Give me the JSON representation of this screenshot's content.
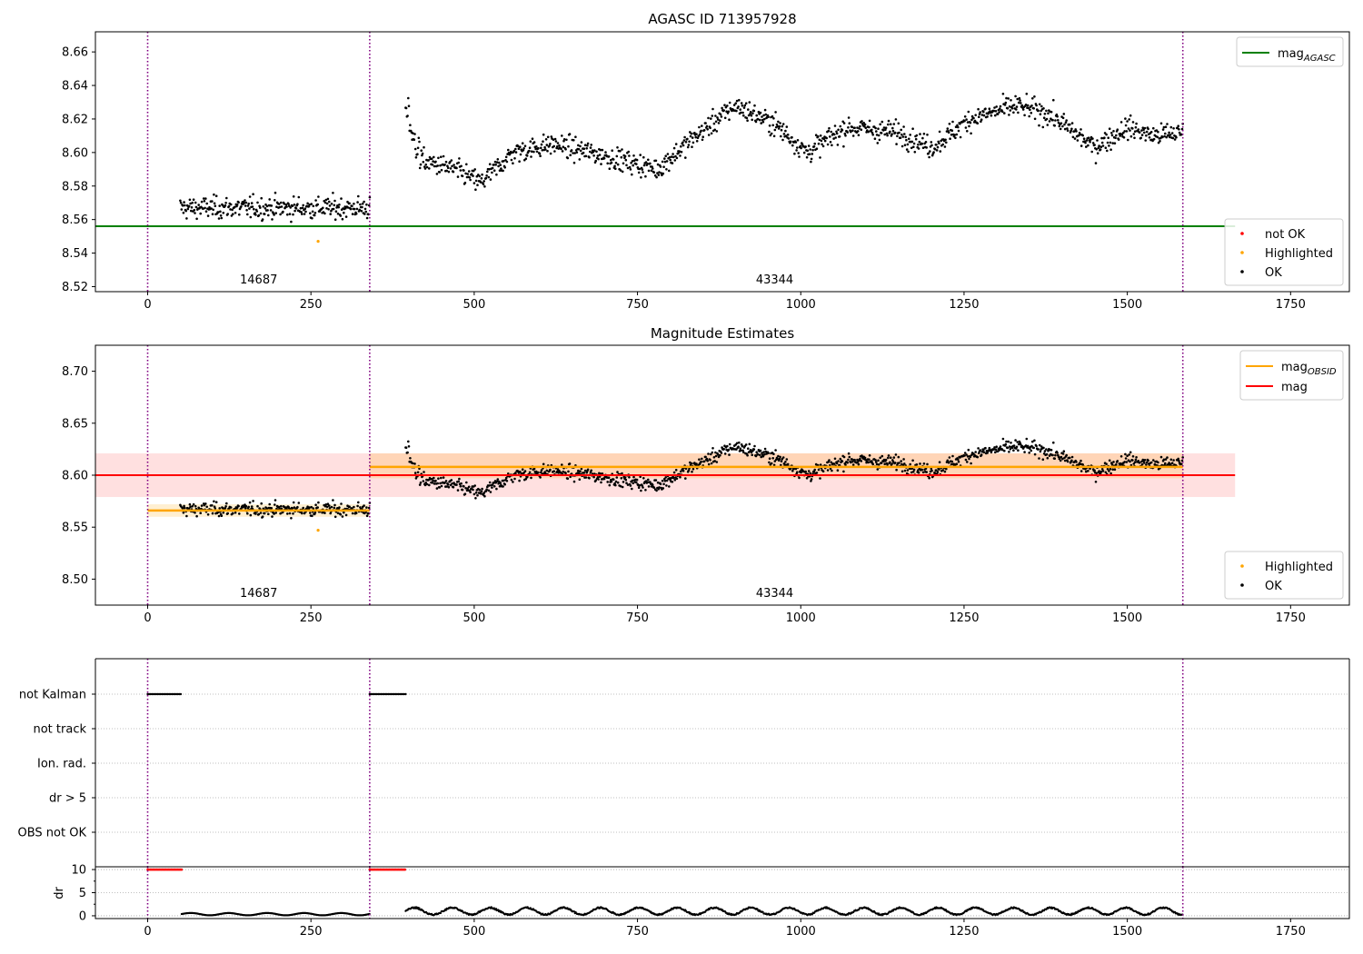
{
  "figure": {
    "title": "AGASC ID 713957928",
    "colors": {
      "ok": "#000000",
      "not_ok": "#ff0000",
      "highlighted": "#ffa500",
      "agasc_line": "#008000",
      "obsid_line": "#ffa500",
      "mag_line": "#ff0000",
      "boundary": "#800080"
    }
  },
  "chart_data": [
    {
      "type": "scatter",
      "title": "",
      "xlim": [
        -80,
        1840
      ],
      "ylim": [
        8.517,
        8.672
      ],
      "x_ticks": [
        0,
        250,
        500,
        750,
        1000,
        1250,
        1500,
        1750
      ],
      "y_ticks": [
        8.52,
        8.54,
        8.56,
        8.58,
        8.6,
        8.62,
        8.64,
        8.66
      ],
      "y_tick_labels": [
        "8.52",
        "8.54",
        "8.56",
        "8.58",
        "8.60",
        "8.62",
        "8.64",
        "8.66"
      ],
      "obsid_boundaries": [
        0,
        340,
        1585
      ],
      "obsids": [
        {
          "label": "14687",
          "x": 170
        },
        {
          "label": "43344",
          "x": 960
        }
      ],
      "agasc_mag": 8.556,
      "agasc_line_x": [
        -80,
        1665
      ],
      "highlighted_points": [
        [
          261,
          8.547
        ]
      ],
      "segments": [
        {
          "x0": 50,
          "x1": 340,
          "count": 300,
          "base": 8.567
        },
        {
          "x0": 395,
          "x1": 1585,
          "count": 1190,
          "profile": [
            [
              395,
              8.625
            ],
            [
              420,
              8.595
            ],
            [
              470,
              8.59
            ],
            [
              510,
              8.582
            ],
            [
              560,
              8.6
            ],
            [
              620,
              8.605
            ],
            [
              700,
              8.598
            ],
            [
              780,
              8.59
            ],
            [
              840,
              8.61
            ],
            [
              900,
              8.628
            ],
            [
              960,
              8.617
            ],
            [
              1010,
              8.6
            ],
            [
              1070,
              8.615
            ],
            [
              1150,
              8.612
            ],
            [
              1200,
              8.603
            ],
            [
              1260,
              8.62
            ],
            [
              1330,
              8.628
            ],
            [
              1380,
              8.623
            ],
            [
              1450,
              8.603
            ],
            [
              1500,
              8.615
            ],
            [
              1540,
              8.61
            ],
            [
              1585,
              8.612
            ]
          ]
        }
      ],
      "legend_lines": [
        {
          "label": "mag",
          "sub": "AGASC",
          "color": "#008000"
        }
      ],
      "legend_points": [
        {
          "label": "not OK",
          "color": "#ff0000"
        },
        {
          "label": "Highlighted",
          "color": "#ffa500"
        },
        {
          "label": "OK",
          "color": "#000000"
        }
      ]
    },
    {
      "type": "scatter",
      "title": "Magnitude Estimates",
      "xlim": [
        -80,
        1840
      ],
      "ylim": [
        8.475,
        8.725
      ],
      "x_ticks": [
        0,
        250,
        500,
        750,
        1000,
        1250,
        1500,
        1750
      ],
      "y_ticks": [
        8.5,
        8.55,
        8.6,
        8.65,
        8.7
      ],
      "y_tick_labels": [
        "8.50",
        "8.55",
        "8.60",
        "8.65",
        "8.70"
      ],
      "obsid_boundaries": [
        0,
        340,
        1585
      ],
      "obsids": [
        {
          "label": "14687",
          "x": 170
        },
        {
          "label": "43344",
          "x": 960
        }
      ],
      "mag": 8.6,
      "mag_band": [
        8.579,
        8.621
      ],
      "mag_line_x": [
        -80,
        1665
      ],
      "obsid_mags": [
        {
          "x0": 0,
          "x1": 340,
          "mag": 8.566,
          "band": [
            8.56,
            8.572
          ]
        },
        {
          "x0": 340,
          "x1": 1585,
          "mag": 8.608,
          "band": [
            8.597,
            8.621
          ]
        }
      ],
      "highlighted_points": [
        [
          261,
          8.547
        ]
      ],
      "legend_lines": [
        {
          "label": "mag",
          "sub": "OBSID",
          "color": "#ffa500"
        },
        {
          "label": "mag",
          "sub": "",
          "color": "#ff0000"
        }
      ],
      "legend_points": [
        {
          "label": "Highlighted",
          "color": "#ffa500"
        },
        {
          "label": "OK",
          "color": "#000000"
        }
      ]
    },
    {
      "type": "scatter",
      "title": "",
      "xlim": [
        -80,
        1840
      ],
      "categories": [
        "not Kalman",
        "not track",
        "Ion. rad.",
        "dr > 5",
        "OBS not OK"
      ],
      "flag_runs": [
        {
          "category": "not Kalman",
          "x0": 0,
          "x1": 52
        },
        {
          "category": "not Kalman",
          "x0": 340,
          "x1": 395
        }
      ],
      "obsid_boundaries": [
        0,
        340,
        1585
      ]
    },
    {
      "type": "scatter",
      "title": "",
      "ylabel": "dr",
      "xlim": [
        -80,
        1840
      ],
      "ylim": [
        -0.6,
        10.6
      ],
      "x_ticks": [
        0,
        250,
        500,
        750,
        1000,
        1250,
        1500,
        1750
      ],
      "y_ticks": [
        0,
        5,
        10
      ],
      "clipped_points": [
        {
          "x0": 0,
          "x1": 52,
          "dr": 10
        },
        {
          "x0": 340,
          "x1": 395,
          "dr": 10
        }
      ],
      "dr_segments": [
        {
          "x0": 52,
          "x1": 340,
          "level": 0.35
        },
        {
          "x0": 395,
          "x1": 1585,
          "level": 1.0
        }
      ],
      "obsid_boundaries": [
        0,
        340,
        1585
      ]
    }
  ]
}
